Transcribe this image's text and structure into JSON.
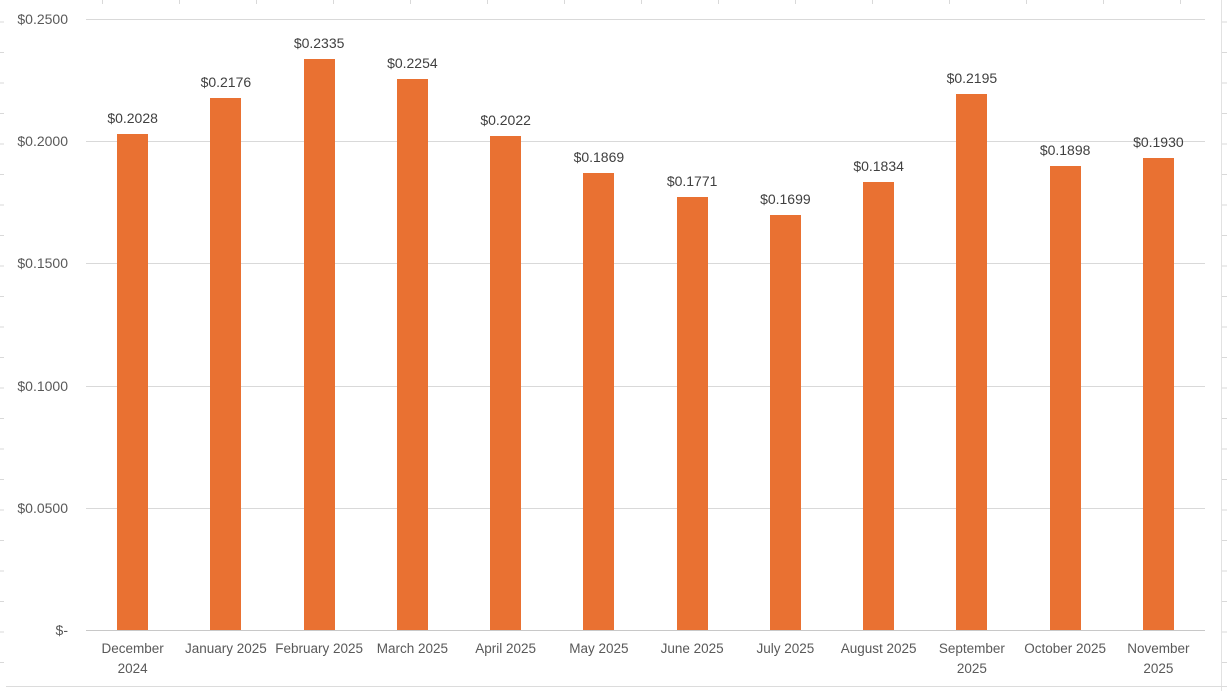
{
  "chart_data": {
    "type": "bar",
    "title": "",
    "xlabel": "",
    "ylabel": "",
    "legend": "none",
    "grid": "horizontal",
    "categories": [
      "December 2024",
      "January 2025",
      "February 2025",
      "March 2025",
      "April 2025",
      "May 2025",
      "June 2025",
      "July 2025",
      "August 2025",
      "September 2025",
      "October 2025",
      "November 2025"
    ],
    "x_tick_display": [
      "December\n2024",
      "January 2025",
      "February 2025",
      "March 2025",
      "April 2025",
      "May 2025",
      "June 2025",
      "July 2025",
      "August 2025",
      "September\n2025",
      "October 2025",
      "November\n2025"
    ],
    "values": [
      0.2028,
      0.2176,
      0.2335,
      0.2254,
      0.2022,
      0.1869,
      0.1771,
      0.1699,
      0.1834,
      0.2195,
      0.1898,
      0.193
    ],
    "data_labels": [
      "$0.2028",
      "$0.2176",
      "$0.2335",
      "$0.2254",
      "$0.2022",
      "$0.1869",
      "$0.1771",
      "$0.1699",
      "$0.1834",
      "$0.2195",
      "$0.1898",
      "$0.1930"
    ],
    "y_axis": {
      "range": [
        0,
        0.25
      ],
      "ticks": [
        {
          "label": "$0.2500",
          "value": 0.25
        },
        {
          "label": "$0.2000",
          "value": 0.2
        },
        {
          "label": "$0.1500",
          "value": 0.15
        },
        {
          "label": "$0.1000",
          "value": 0.1
        },
        {
          "label": "$0.0500",
          "value": 0.05
        },
        {
          "label": "$-",
          "value": 0.0
        }
      ]
    },
    "colors": {
      "bar": "#E97132",
      "gridline": "#D9D9D9",
      "axis_line": "#C8C8C8",
      "data_label": "#404040",
      "tick_label": "#595959"
    }
  }
}
